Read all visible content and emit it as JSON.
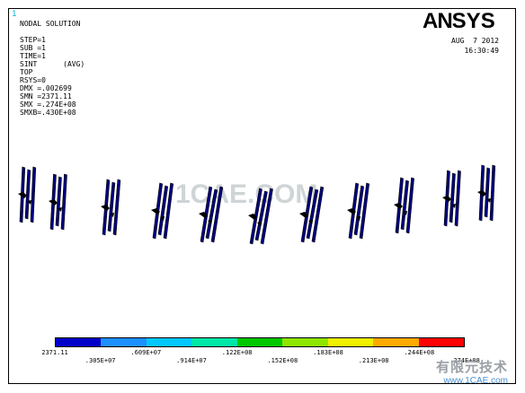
{
  "window_number": "1",
  "info_lines": [
    "NODAL SOLUTION",
    "",
    "STEP=1",
    "SUB =1",
    "TIME=1",
    "SINT      (AVG)",
    "TOP",
    "RSYS=0",
    "DMX =.002699",
    "SMN =2371.11",
    "SMX =.274E+08",
    "SMXB=.430E+08"
  ],
  "logo": {
    "prefix": "AN",
    "suffix": "SYS"
  },
  "date": "AUG  7 2012",
  "time": "16:30:49",
  "watermark_center": "1CAE.COM",
  "colorbar": {
    "colors": [
      "#0000c8",
      "#1e90ff",
      "#00c8ff",
      "#00e8a8",
      "#00c800",
      "#8ee600",
      "#f0f000",
      "#ffaa00",
      "#ff0000"
    ],
    "labels_top": [
      "2371.11",
      ".609E+07",
      ".122E+08",
      ".183E+08",
      ".244E+08"
    ],
    "labels_bottom": [
      ".305E+07",
      ".914E+07",
      ".152E+08",
      ".213E+08",
      ".274E+08"
    ]
  },
  "corner_watermark": {
    "chinese": "有限元技术",
    "url": "www.1CAE.com"
  },
  "colors": {
    "model_stroke": "#000080",
    "logo": "#000000",
    "frame": "#000000"
  }
}
